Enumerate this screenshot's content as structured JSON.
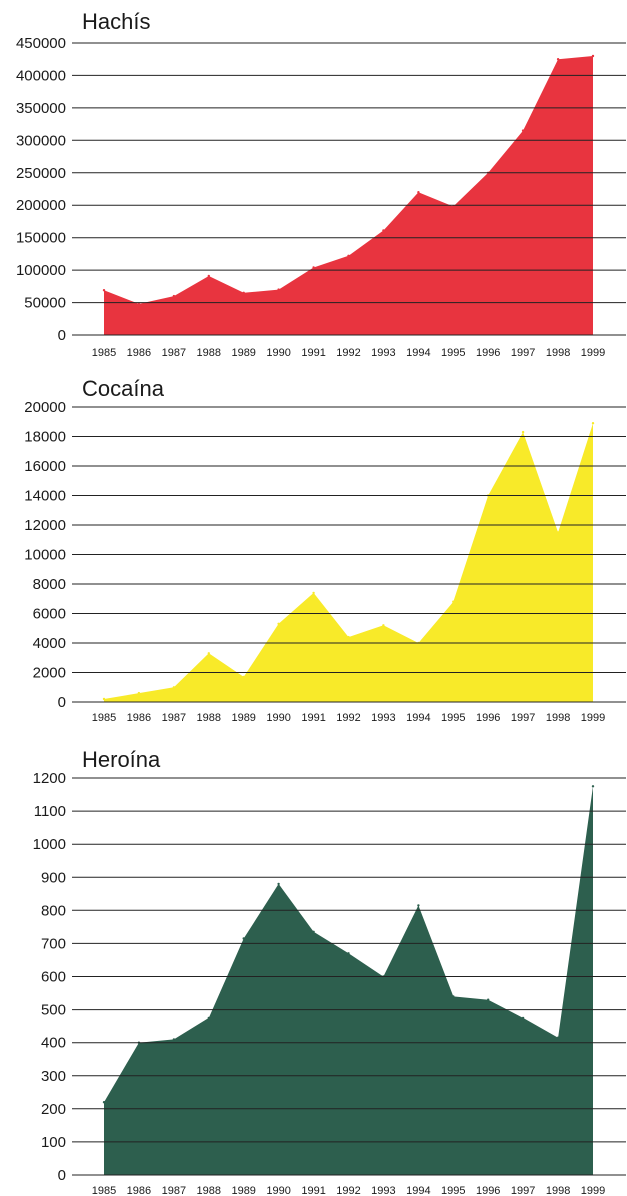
{
  "chart_data": [
    {
      "type": "area",
      "title": "Hachís",
      "xlabel": "",
      "ylabel": "",
      "ylim": [
        0,
        450000
      ],
      "yticks": [
        0,
        50000,
        100000,
        150000,
        200000,
        250000,
        300000,
        350000,
        400000,
        450000
      ],
      "ytick_labels": [
        "0",
        "50000",
        "100000",
        "150000",
        "200000",
        "250000",
        "300000",
        "350000",
        "400000",
        "450000"
      ],
      "grid": true,
      "categories": [
        "1985",
        "1986",
        "1987",
        "1988",
        "1989",
        "1990",
        "1991",
        "1992",
        "1993",
        "1994",
        "1995",
        "1996",
        "1997",
        "1998",
        "1999"
      ],
      "series": [
        {
          "values": [
            69000,
            48000,
            60000,
            91000,
            65000,
            70000,
            104000,
            122000,
            161000,
            220000,
            198000,
            250000,
            315000,
            425000,
            430000
          ],
          "color": "#e8343f"
        }
      ]
    },
    {
      "type": "area",
      "title": "Cocaína",
      "xlabel": "",
      "ylabel": "",
      "ylim": [
        0,
        20000
      ],
      "yticks": [
        0,
        2000,
        4000,
        6000,
        8000,
        10000,
        12000,
        14000,
        16000,
        18000,
        20000
      ],
      "ytick_labels": [
        "0",
        "2000",
        "4000",
        "6000",
        "8000",
        "10000",
        "12000",
        "14000",
        "16000",
        "18000",
        "20000"
      ],
      "grid": true,
      "categories": [
        "1985",
        "1986",
        "1987",
        "1988",
        "1989",
        "1990",
        "1991",
        "1992",
        "1993",
        "1994",
        "1995",
        "1996",
        "1997",
        "1998",
        "1999"
      ],
      "series": [
        {
          "values": [
            200,
            600,
            1000,
            3300,
            1700,
            5300,
            7400,
            4400,
            5200,
            4000,
            6800,
            14000,
            18300,
            11500,
            18900
          ],
          "color": "#f8ea29"
        }
      ]
    },
    {
      "type": "area",
      "title": "Heroína",
      "xlabel": "",
      "ylabel": "",
      "ylim": [
        0,
        1200
      ],
      "yticks": [
        0,
        100,
        200,
        300,
        400,
        500,
        600,
        700,
        800,
        900,
        1000,
        1100,
        1200
      ],
      "ytick_labels": [
        "0",
        "100",
        "200",
        "300",
        "400",
        "500",
        "600",
        "700",
        "800",
        "900",
        "1000",
        "1100",
        "1200"
      ],
      "grid": true,
      "categories": [
        "1985",
        "1986",
        "1987",
        "1988",
        "1989",
        "1990",
        "1991",
        "1992",
        "1993",
        "1994",
        "1995",
        "1996",
        "1997",
        "1998",
        "1999"
      ],
      "series": [
        {
          "values": [
            220,
            400,
            410,
            475,
            715,
            880,
            735,
            670,
            600,
            815,
            540,
            530,
            475,
            415,
            1175
          ],
          "color": "#2d5f4e"
        }
      ]
    }
  ]
}
